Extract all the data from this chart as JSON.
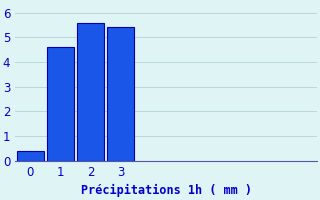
{
  "categories": [
    -0.5,
    0.5,
    1.5,
    2.5
  ],
  "values": [
    0.4,
    4.6,
    5.6,
    5.4
  ],
  "bar_color": "#1a56e8",
  "bar_edge_color": "#0000aa",
  "background_color": "#dff4f4",
  "grid_color": "#b8d8d8",
  "axis_color": "#5555aa",
  "xlabel": "Précipitations 1h ( mm )",
  "xlabel_color": "#0000cc",
  "tick_color": "#0000cc",
  "ylim": [
    0,
    6.4
  ],
  "xlim": [
    -1.0,
    9.0
  ],
  "yticks": [
    0,
    1,
    2,
    3,
    4,
    5,
    6
  ],
  "xtick_positions": [
    -0.5,
    0.5,
    1.5,
    2.5
  ],
  "xtick_labels": [
    "0",
    "1",
    "2",
    "3"
  ],
  "bar_width": 0.9,
  "xlabel_fontsize": 8.5,
  "tick_fontsize": 8.5
}
